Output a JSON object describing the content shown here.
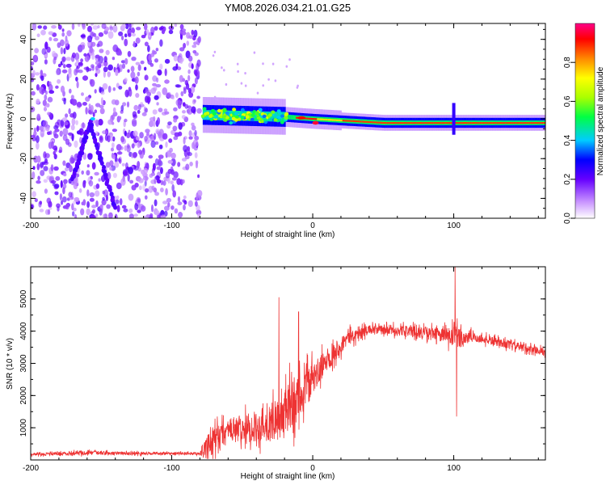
{
  "chart_data": [
    {
      "type": "heatmap",
      "title": "YM08.2026.034.21.01.G25",
      "xlabel": "Height of straight line (km)",
      "ylabel": "Frequency (Hz)",
      "xlim": [
        -200,
        165
      ],
      "ylim": [
        -50,
        48
      ],
      "xticks": [
        -200,
        -100,
        0,
        100
      ],
      "xtick_labels": [
        "-200",
        "-100",
        "0",
        "100"
      ],
      "yticks": [
        -40,
        -20,
        0,
        20,
        40
      ],
      "ytick_labels": [
        "-40",
        "-20",
        "0",
        "20",
        "40"
      ],
      "grid": false,
      "colorbar": {
        "label": "Normalized spectral amplitude",
        "range": [
          0,
          1
        ],
        "ticks": [
          0,
          0.2,
          0.4,
          0.6,
          0.8
        ],
        "tick_labels": [
          "0.0",
          "0.2",
          "0.4",
          "0.6",
          "0.8"
        ],
        "colormap": "rainbow (white-violet-blue-cyan-green-yellow-red-magenta)"
      },
      "features": {
        "noise_region_x": [
          -200,
          -80
        ],
        "noise_amplitude": 0.1,
        "v_shape_apex": [
          -158,
          -2
        ],
        "v_shape_branches": [
          [
            -170,
            -30
          ],
          [
            -140,
            -45
          ]
        ],
        "signal_start_x": -78,
        "signal_band_center_hz": [
          [
            -78,
            2
          ],
          [
            -20,
            1
          ],
          [
            0,
            0
          ],
          [
            50,
            -2
          ],
          [
            100,
            -2
          ],
          [
            165,
            -2
          ]
        ],
        "signal_peak_x": [
          -10,
          0
        ],
        "spike_x": 100
      }
    },
    {
      "type": "line",
      "xlabel": "Height of straight line (km)",
      "ylabel": "SNR (10 * v/v)",
      "xlim": [
        -200,
        165
      ],
      "ylim": [
        0,
        6000
      ],
      "xticks": [
        -200,
        -100,
        0,
        100
      ],
      "xtick_labels": [
        "-200",
        "-100",
        "0",
        "100"
      ],
      "yticks": [
        1000,
        2000,
        3000,
        4000,
        5000
      ],
      "ytick_labels": [
        "1000",
        "2000",
        "3000",
        "4000",
        "5000"
      ],
      "grid": false,
      "series": [
        {
          "name": "SNR",
          "color": "#ee3333",
          "envelope": [
            {
              "x": -200,
              "mean": 170,
              "amp": 70
            },
            {
              "x": -160,
              "mean": 220,
              "amp": 120
            },
            {
              "x": -120,
              "mean": 200,
              "amp": 80
            },
            {
              "x": -80,
              "mean": 200,
              "amp": 70
            },
            {
              "x": -72,
              "mean": 500,
              "amp": 900
            },
            {
              "x": -60,
              "mean": 900,
              "amp": 700
            },
            {
              "x": -40,
              "mean": 1000,
              "amp": 800
            },
            {
              "x": -25,
              "mean": 1200,
              "amp": 1100
            },
            {
              "x": -15,
              "mean": 1700,
              "amp": 1500
            },
            {
              "x": -5,
              "mean": 2200,
              "amp": 1100
            },
            {
              "x": 10,
              "mean": 3100,
              "amp": 600
            },
            {
              "x": 25,
              "mean": 3800,
              "amp": 400
            },
            {
              "x": 40,
              "mean": 4050,
              "amp": 250
            },
            {
              "x": 70,
              "mean": 4000,
              "amp": 300
            },
            {
              "x": 90,
              "mean": 3900,
              "amp": 350
            },
            {
              "x": 100,
              "mean": 3800,
              "amp": 700
            },
            {
              "x": 115,
              "mean": 3800,
              "amp": 250
            },
            {
              "x": 165,
              "mean": 3350,
              "amp": 200
            }
          ],
          "spikes": [
            {
              "x": -24,
              "y": 5050
            },
            {
              "x": -10,
              "y": 4600
            },
            {
              "x": 101,
              "y": 6000
            },
            {
              "x": 102,
              "y": 1350
            }
          ]
        }
      ]
    }
  ]
}
